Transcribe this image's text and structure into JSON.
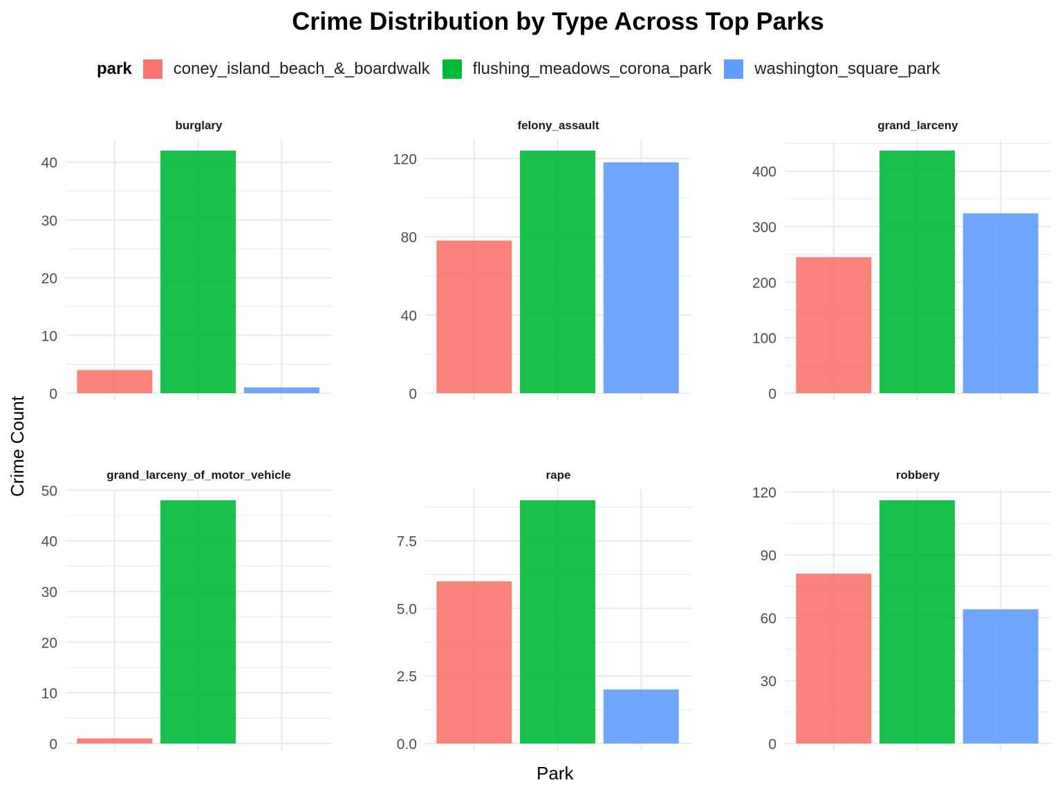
{
  "title": "Crime Distribution by Type Across Top Parks",
  "legend": {
    "title": "park",
    "items": [
      {
        "label": "coney_island_beach_&_boardwalk",
        "color": "#F8766D"
      },
      {
        "label": "flushing_meadows_corona_park",
        "color": "#00BA38"
      },
      {
        "label": "washington_square_park",
        "color": "#619CFF"
      }
    ]
  },
  "xlabel": "Park",
  "ylabel": "Crime Count",
  "chart_data": {
    "type": "bar",
    "categories": [
      "coney_island_beach_&_boardwalk",
      "flushing_meadows_corona_park",
      "washington_square_park"
    ],
    "facets": [
      {
        "name": "burglary",
        "values": [
          4,
          42,
          1
        ],
        "ylim": [
          0,
          42
        ],
        "ticks": [
          0,
          10,
          20,
          30,
          40
        ],
        "tick_labels": [
          "0",
          "10",
          "20",
          "30",
          "40"
        ]
      },
      {
        "name": "felony_assault",
        "values": [
          78,
          124,
          118
        ],
        "ylim": [
          0,
          124
        ],
        "ticks": [
          0,
          40,
          80,
          120
        ],
        "tick_labels": [
          "0",
          "40",
          "80",
          "120"
        ]
      },
      {
        "name": "grand_larceny",
        "values": [
          245,
          437,
          324
        ],
        "ylim": [
          0,
          437
        ],
        "ticks": [
          0,
          100,
          200,
          300,
          400
        ],
        "tick_labels": [
          "0",
          "100",
          "200",
          "300",
          "400"
        ]
      },
      {
        "name": "grand_larceny_of_motor_vehicle",
        "values": [
          1,
          48,
          0
        ],
        "ylim": [
          0,
          48
        ],
        "ticks": [
          0,
          10,
          20,
          30,
          40,
          50
        ],
        "tick_labels": [
          "0",
          "10",
          "20",
          "30",
          "40",
          "50"
        ]
      },
      {
        "name": "rape",
        "values": [
          6,
          9,
          2
        ],
        "ylim": [
          0,
          9
        ],
        "ticks": [
          0,
          2.5,
          5,
          7.5
        ],
        "tick_labels": [
          "0.0",
          "2.5",
          "5.0",
          "7.5"
        ]
      },
      {
        "name": "robbery",
        "values": [
          81,
          116,
          64
        ],
        "ylim": [
          0,
          116
        ],
        "ticks": [
          0,
          30,
          60,
          90,
          120
        ],
        "tick_labels": [
          "0",
          "30",
          "60",
          "90",
          "120"
        ]
      }
    ],
    "legend_position": "top",
    "grid": true
  }
}
